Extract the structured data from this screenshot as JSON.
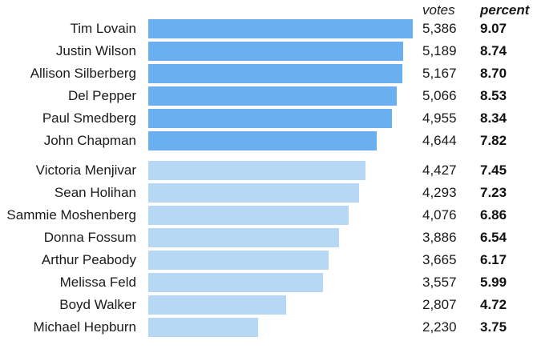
{
  "chart_data": {
    "type": "bar",
    "orientation": "horizontal",
    "header_votes": "votes",
    "header_percent": "percent",
    "x_max": 5386,
    "groups": [
      {
        "color": "#6aaff0",
        "rows": [
          {
            "name": "Tim Lovain",
            "votes": 5386,
            "votes_label": "5,386",
            "percent": 9.07,
            "percent_label": "9.07"
          },
          {
            "name": "Justin Wilson",
            "votes": 5189,
            "votes_label": "5,189",
            "percent": 8.74,
            "percent_label": "8.74"
          },
          {
            "name": "Allison Silberberg",
            "votes": 5167,
            "votes_label": "5,167",
            "percent": 8.7,
            "percent_label": "8.70"
          },
          {
            "name": "Del Pepper",
            "votes": 5066,
            "votes_label": "5,066",
            "percent": 8.53,
            "percent_label": "8.53"
          },
          {
            "name": "Paul Smedberg",
            "votes": 4955,
            "votes_label": "4,955",
            "percent": 8.34,
            "percent_label": "8.34"
          },
          {
            "name": "John Chapman",
            "votes": 4644,
            "votes_label": "4,644",
            "percent": 7.82,
            "percent_label": "7.82"
          }
        ]
      },
      {
        "color": "#b7d8f5",
        "rows": [
          {
            "name": "Victoria Menjivar",
            "votes": 4427,
            "votes_label": "4,427",
            "percent": 7.45,
            "percent_label": "7.45"
          },
          {
            "name": "Sean Holihan",
            "votes": 4293,
            "votes_label": "4,293",
            "percent": 7.23,
            "percent_label": "7.23"
          },
          {
            "name": "Sammie Moshenberg",
            "votes": 4076,
            "votes_label": "4,076",
            "percent": 6.86,
            "percent_label": "6.86"
          },
          {
            "name": "Donna Fossum",
            "votes": 3886,
            "votes_label": "3,886",
            "percent": 6.54,
            "percent_label": "6.54"
          },
          {
            "name": "Arthur Peabody",
            "votes": 3665,
            "votes_label": "3,665",
            "percent": 6.17,
            "percent_label": "6.17"
          },
          {
            "name": "Melissa Feld",
            "votes": 3557,
            "votes_label": "3,557",
            "percent": 5.99,
            "percent_label": "5.99"
          },
          {
            "name": "Boyd Walker",
            "votes": 2807,
            "votes_label": "2,807",
            "percent": 4.72,
            "percent_label": "4.72"
          },
          {
            "name": "Michael Hepburn",
            "votes": 2230,
            "votes_label": "2,230",
            "percent": 3.75,
            "percent_label": "3.75"
          }
        ]
      }
    ]
  }
}
